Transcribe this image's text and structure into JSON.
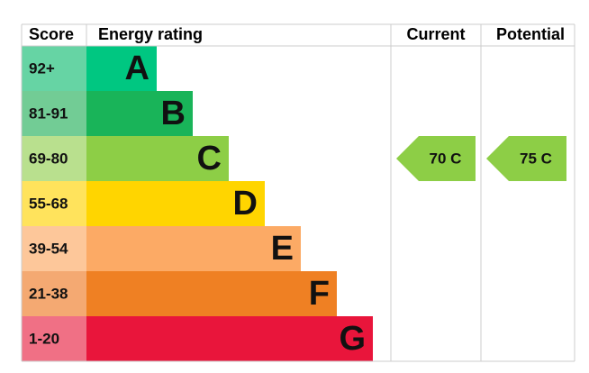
{
  "header": {
    "score": "Score",
    "rating": "Energy rating",
    "current": "Current",
    "potential": "Potential"
  },
  "bands": [
    {
      "score": "92+",
      "letter": "A",
      "color": "#00c781",
      "light": "#66d4a4"
    },
    {
      "score": "81-91",
      "letter": "B",
      "color": "#19b459",
      "light": "#72cc95"
    },
    {
      "score": "69-80",
      "letter": "C",
      "color": "#8dce46",
      "light": "#b9e08e"
    },
    {
      "score": "55-68",
      "letter": "D",
      "color": "#ffd500",
      "light": "#ffe35c"
    },
    {
      "score": "39-54",
      "letter": "E",
      "color": "#fcaa65",
      "light": "#fdc79a"
    },
    {
      "score": "21-38",
      "letter": "F",
      "color": "#ef8023",
      "light": "#f4a972"
    },
    {
      "score": "1-20",
      "letter": "G",
      "color": "#e9153b",
      "light": "#f07085"
    }
  ],
  "current": {
    "label": "70 C",
    "letter": "C"
  },
  "potential": {
    "label": "75 C",
    "letter": "C"
  }
}
